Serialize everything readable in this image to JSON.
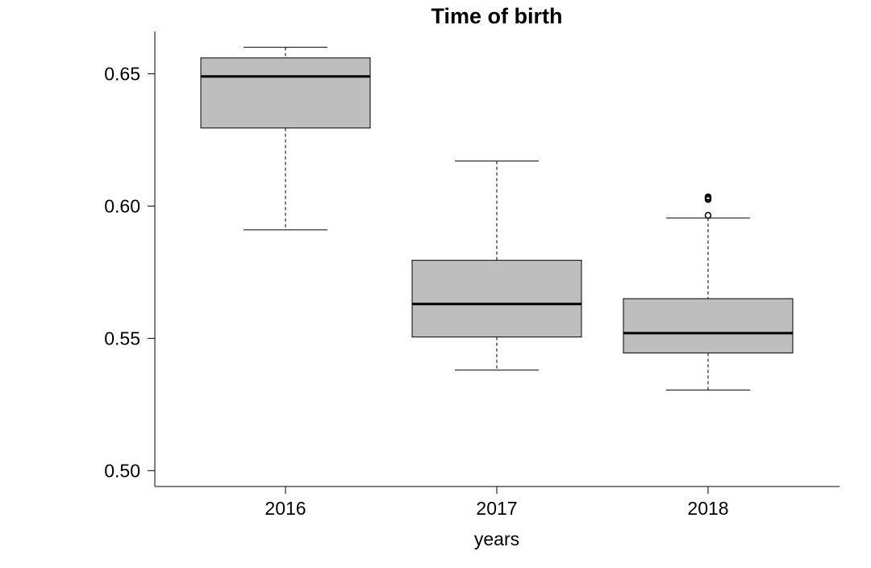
{
  "chart_data": {
    "type": "boxplot",
    "title": "Time of birth",
    "xlabel": "years",
    "ylabel": "",
    "ylim": [
      0.494,
      0.666
    ],
    "yticks": [
      0.5,
      0.55,
      0.6,
      0.65
    ],
    "ytick_labels": [
      "0.50",
      "0.55",
      "0.60",
      "0.65"
    ],
    "grid": false,
    "box_color": "#bebebe",
    "line_color": "#000000",
    "categories": [
      "2016",
      "2017",
      "2018"
    ],
    "boxes": [
      {
        "category": "2016",
        "whisker_low": 0.591,
        "q1": 0.6295,
        "median": 0.649,
        "q3": 0.656,
        "whisker_high": 0.66,
        "outliers": []
      },
      {
        "category": "2017",
        "whisker_low": 0.538,
        "q1": 0.5505,
        "median": 0.563,
        "q3": 0.5795,
        "whisker_high": 0.617,
        "outliers": []
      },
      {
        "category": "2018",
        "whisker_low": 0.5305,
        "q1": 0.5445,
        "median": 0.552,
        "q3": 0.565,
        "whisker_high": 0.5955,
        "outliers": [
          0.5965,
          0.6025,
          0.603,
          0.6035
        ]
      }
    ]
  }
}
